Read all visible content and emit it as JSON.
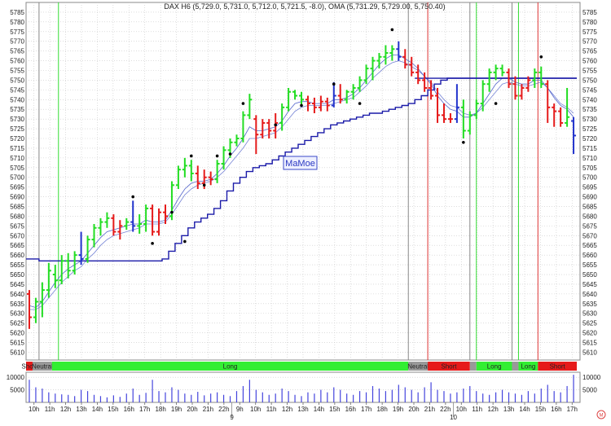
{
  "header": {
    "legend_text": "DAX H6 (5,729.0, 5,731.0, 5,712.0, 5,721.5, -8.0), OMA (5,731.29, 5,729.00, 5,750.40)"
  },
  "watermark": "MaMoe",
  "colors": {
    "up": "#22dd22",
    "down": "#e51a1a",
    "neutral": "#2233cc",
    "stop_line": "#1a1aa8",
    "ma": "#5566cc",
    "long_band": "#33ee33",
    "short_band": "#e61a1a",
    "neutral_band": "#999999",
    "volume": "#4444dd",
    "grid": "#c8c8c8",
    "session_line_green": "#33dd33",
    "session_line_red": "#dd3333",
    "session_line_gray": "#888888"
  },
  "chart_data": {
    "type": "ohlc",
    "instrument": "DAX H6",
    "ylim": [
      5606,
      5790
    ],
    "y_ticks": [
      5610,
      5615,
      5620,
      5625,
      5630,
      5635,
      5640,
      5645,
      5650,
      5655,
      5660,
      5665,
      5670,
      5675,
      5680,
      5685,
      5690,
      5695,
      5700,
      5705,
      5710,
      5715,
      5720,
      5725,
      5730,
      5735,
      5740,
      5745,
      5750,
      5755,
      5760,
      5765,
      5770,
      5775,
      5780,
      5785
    ],
    "x_ticks": [
      "10h",
      "11h",
      "12h",
      "13h",
      "14h",
      "15h",
      "16h",
      "17h",
      "18h",
      "19h",
      "20h",
      "21h",
      "22h",
      "9h",
      "10h",
      "11h",
      "12h",
      "13h",
      "14h",
      "15h",
      "16h",
      "17h",
      "18h",
      "19h",
      "20h",
      "21h",
      "22h",
      "10h",
      "11h",
      "12h",
      "13h",
      "14h",
      "15h",
      "16h",
      "17h"
    ],
    "date_labels": [
      "9",
      "10"
    ],
    "bars": [
      {
        "o": 5640,
        "h": 5642,
        "l": 5622,
        "c": 5628,
        "d": "down"
      },
      {
        "o": 5628,
        "h": 5638,
        "l": 5625,
        "c": 5636,
        "d": "up"
      },
      {
        "o": 5636,
        "h": 5646,
        "l": 5628,
        "c": 5642,
        "d": "up"
      },
      {
        "o": 5642,
        "h": 5656,
        "l": 5638,
        "c": 5652,
        "d": "up"
      },
      {
        "o": 5650,
        "h": 5655,
        "l": 5643,
        "c": 5647,
        "d": "up"
      },
      {
        "o": 5647,
        "h": 5660,
        "l": 5645,
        "c": 5657,
        "d": "up"
      },
      {
        "o": 5657,
        "h": 5661,
        "l": 5648,
        "c": 5652,
        "d": "up"
      },
      {
        "o": 5652,
        "h": 5662,
        "l": 5650,
        "c": 5660,
        "d": "up"
      },
      {
        "o": 5660,
        "h": 5672,
        "l": 5655,
        "c": 5658,
        "d": "neutral"
      },
      {
        "o": 5658,
        "h": 5670,
        "l": 5656,
        "c": 5668,
        "d": "up"
      },
      {
        "o": 5668,
        "h": 5676,
        "l": 5664,
        "c": 5674,
        "d": "up"
      },
      {
        "o": 5674,
        "h": 5679,
        "l": 5670,
        "c": 5677,
        "d": "up"
      },
      {
        "o": 5677,
        "h": 5682,
        "l": 5674,
        "c": 5679,
        "d": "up"
      },
      {
        "o": 5679,
        "h": 5681,
        "l": 5670,
        "c": 5672,
        "d": "down"
      },
      {
        "o": 5672,
        "h": 5678,
        "l": 5668,
        "c": 5675,
        "d": "down"
      },
      {
        "o": 5675,
        "h": 5679,
        "l": 5673,
        "c": 5677,
        "d": "up"
      },
      {
        "o": 5677,
        "h": 5688,
        "l": 5672,
        "c": 5675,
        "d": "neutral"
      },
      {
        "o": 5675,
        "h": 5681,
        "l": 5671,
        "c": 5676,
        "d": "up"
      },
      {
        "o": 5676,
        "h": 5686,
        "l": 5672,
        "c": 5684,
        "d": "up"
      },
      {
        "o": 5684,
        "h": 5686,
        "l": 5670,
        "c": 5672,
        "d": "down"
      },
      {
        "o": 5672,
        "h": 5684,
        "l": 5670,
        "c": 5682,
        "d": "down"
      },
      {
        "o": 5682,
        "h": 5686,
        "l": 5676,
        "c": 5680,
        "d": "down"
      },
      {
        "o": 5680,
        "h": 5698,
        "l": 5678,
        "c": 5696,
        "d": "up"
      },
      {
        "o": 5696,
        "h": 5706,
        "l": 5694,
        "c": 5704,
        "d": "up"
      },
      {
        "o": 5704,
        "h": 5710,
        "l": 5700,
        "c": 5706,
        "d": "up"
      },
      {
        "o": 5706,
        "h": 5709,
        "l": 5698,
        "c": 5702,
        "d": "up"
      },
      {
        "o": 5702,
        "h": 5706,
        "l": 5694,
        "c": 5697,
        "d": "down"
      },
      {
        "o": 5697,
        "h": 5704,
        "l": 5694,
        "c": 5700,
        "d": "down"
      },
      {
        "o": 5700,
        "h": 5703,
        "l": 5696,
        "c": 5699,
        "d": "down"
      },
      {
        "o": 5699,
        "h": 5709,
        "l": 5697,
        "c": 5707,
        "d": "up"
      },
      {
        "o": 5707,
        "h": 5716,
        "l": 5704,
        "c": 5714,
        "d": "up"
      },
      {
        "o": 5714,
        "h": 5720,
        "l": 5710,
        "c": 5718,
        "d": "up"
      },
      {
        "o": 5718,
        "h": 5722,
        "l": 5716,
        "c": 5720,
        "d": "up"
      },
      {
        "o": 5720,
        "h": 5734,
        "l": 5718,
        "c": 5732,
        "d": "up"
      },
      {
        "o": 5732,
        "h": 5743,
        "l": 5730,
        "c": 5740,
        "d": "up"
      },
      {
        "o": 5730,
        "h": 5732,
        "l": 5712,
        "c": 5722,
        "d": "down"
      },
      {
        "o": 5722,
        "h": 5730,
        "l": 5720,
        "c": 5728,
        "d": "down"
      },
      {
        "o": 5728,
        "h": 5730,
        "l": 5720,
        "c": 5724,
        "d": "down"
      },
      {
        "o": 5724,
        "h": 5733,
        "l": 5720,
        "c": 5728,
        "d": "down"
      },
      {
        "o": 5728,
        "h": 5738,
        "l": 5724,
        "c": 5736,
        "d": "up"
      },
      {
        "o": 5736,
        "h": 5746,
        "l": 5734,
        "c": 5744,
        "d": "up"
      },
      {
        "o": 5744,
        "h": 5745,
        "l": 5740,
        "c": 5742,
        "d": "up"
      },
      {
        "o": 5742,
        "h": 5744,
        "l": 5737,
        "c": 5740,
        "d": "up"
      },
      {
        "o": 5740,
        "h": 5742,
        "l": 5734,
        "c": 5738,
        "d": "down"
      },
      {
        "o": 5738,
        "h": 5741,
        "l": 5733,
        "c": 5736,
        "d": "down"
      },
      {
        "o": 5736,
        "h": 5742,
        "l": 5734,
        "c": 5739,
        "d": "down"
      },
      {
        "o": 5739,
        "h": 5741,
        "l": 5734,
        "c": 5737,
        "d": "down"
      },
      {
        "o": 5737,
        "h": 5749,
        "l": 5736,
        "c": 5742,
        "d": "neutral"
      },
      {
        "o": 5742,
        "h": 5748,
        "l": 5738,
        "c": 5740,
        "d": "down"
      },
      {
        "o": 5740,
        "h": 5745,
        "l": 5738,
        "c": 5744,
        "d": "up"
      },
      {
        "o": 5744,
        "h": 5748,
        "l": 5740,
        "c": 5746,
        "d": "up"
      },
      {
        "o": 5746,
        "h": 5752,
        "l": 5744,
        "c": 5750,
        "d": "up"
      },
      {
        "o": 5750,
        "h": 5758,
        "l": 5748,
        "c": 5756,
        "d": "up"
      },
      {
        "o": 5756,
        "h": 5762,
        "l": 5750,
        "c": 5760,
        "d": "up"
      },
      {
        "o": 5760,
        "h": 5764,
        "l": 5756,
        "c": 5762,
        "d": "up"
      },
      {
        "o": 5762,
        "h": 5768,
        "l": 5758,
        "c": 5764,
        "d": "up"
      },
      {
        "o": 5764,
        "h": 5768,
        "l": 5760,
        "c": 5766,
        "d": "up"
      },
      {
        "o": 5766,
        "h": 5770,
        "l": 5760,
        "c": 5762,
        "d": "neutral"
      },
      {
        "o": 5762,
        "h": 5766,
        "l": 5756,
        "c": 5758,
        "d": "down"
      },
      {
        "o": 5758,
        "h": 5762,
        "l": 5752,
        "c": 5754,
        "d": "down"
      },
      {
        "o": 5754,
        "h": 5758,
        "l": 5748,
        "c": 5750,
        "d": "down"
      },
      {
        "o": 5750,
        "h": 5754,
        "l": 5744,
        "c": 5746,
        "d": "down"
      },
      {
        "o": 5746,
        "h": 5750,
        "l": 5740,
        "c": 5742,
        "d": "down"
      },
      {
        "o": 5742,
        "h": 5746,
        "l": 5728,
        "c": 5732,
        "d": "down"
      },
      {
        "o": 5732,
        "h": 5738,
        "l": 5728,
        "c": 5730,
        "d": "down"
      },
      {
        "o": 5730,
        "h": 5733,
        "l": 5728,
        "c": 5730,
        "d": "down"
      },
      {
        "o": 5730,
        "h": 5748,
        "l": 5728,
        "c": 5736,
        "d": "neutral"
      },
      {
        "o": 5736,
        "h": 5740,
        "l": 5720,
        "c": 5724,
        "d": "up"
      },
      {
        "o": 5724,
        "h": 5734,
        "l": 5722,
        "c": 5732,
        "d": "up"
      },
      {
        "o": 5732,
        "h": 5740,
        "l": 5730,
        "c": 5738,
        "d": "up"
      },
      {
        "o": 5738,
        "h": 5750,
        "l": 5734,
        "c": 5748,
        "d": "up"
      },
      {
        "o": 5748,
        "h": 5756,
        "l": 5744,
        "c": 5754,
        "d": "up"
      },
      {
        "o": 5754,
        "h": 5758,
        "l": 5750,
        "c": 5756,
        "d": "up"
      },
      {
        "o": 5756,
        "h": 5758,
        "l": 5752,
        "c": 5754,
        "d": "up"
      },
      {
        "o": 5754,
        "h": 5756,
        "l": 5746,
        "c": 5748,
        "d": "down"
      },
      {
        "o": 5748,
        "h": 5752,
        "l": 5740,
        "c": 5742,
        "d": "down"
      },
      {
        "o": 5742,
        "h": 5748,
        "l": 5740,
        "c": 5746,
        "d": "down"
      },
      {
        "o": 5746,
        "h": 5752,
        "l": 5744,
        "c": 5750,
        "d": "down"
      },
      {
        "o": 5750,
        "h": 5756,
        "l": 5746,
        "c": 5754,
        "d": "up"
      },
      {
        "o": 5754,
        "h": 5757,
        "l": 5746,
        "c": 5748,
        "d": "up"
      },
      {
        "o": 5748,
        "h": 5750,
        "l": 5728,
        "c": 5736,
        "d": "down"
      },
      {
        "o": 5736,
        "h": 5738,
        "l": 5726,
        "c": 5734,
        "d": "down"
      },
      {
        "o": 5734,
        "h": 5736,
        "l": 5726,
        "c": 5728,
        "d": "down"
      },
      {
        "o": 5728,
        "h": 5746,
        "l": 5726,
        "c": 5731,
        "d": "up"
      },
      {
        "o": 5729,
        "h": 5731,
        "l": 5712,
        "c": 5721.5,
        "d": "neutral"
      }
    ],
    "stop_line": [
      5658,
      5658,
      5657,
      5657,
      5657,
      5657,
      5657,
      5657,
      5657,
      5657,
      5657,
      5657,
      5657,
      5657,
      5657,
      5657,
      5657,
      5657,
      5657,
      5657,
      5657,
      5658,
      5662,
      5666,
      5670,
      5674,
      5677,
      5679,
      5681,
      5684,
      5688,
      5693,
      5697,
      5700,
      5703,
      5705,
      5706,
      5707,
      5709,
      5711,
      5713,
      5715,
      5717,
      5719,
      5721,
      5723,
      5725,
      5727,
      5728,
      5729,
      5730,
      5731,
      5732,
      5733,
      5733,
      5734,
      5735,
      5736,
      5737,
      5738,
      5740,
      5742,
      5745,
      5748,
      5750,
      5751,
      5751,
      5751,
      5751,
      5751,
      5751,
      5751,
      5751,
      5751,
      5751,
      5751,
      5751,
      5751,
      5751,
      5751,
      5751,
      5751,
      5751,
      5751,
      5751
    ],
    "ma_fast": [
      5634,
      5633,
      5636,
      5641,
      5646,
      5650,
      5653,
      5655,
      5657,
      5661,
      5665,
      5669,
      5672,
      5673,
      5674,
      5675,
      5676,
      5676,
      5678,
      5677,
      5677,
      5678,
      5683,
      5689,
      5694,
      5697,
      5698,
      5698,
      5699,
      5702,
      5706,
      5711,
      5715,
      5720,
      5726,
      5724,
      5724,
      5725,
      5726,
      5729,
      5734,
      5738,
      5739,
      5739,
      5738,
      5738,
      5738,
      5740,
      5740,
      5741,
      5743,
      5746,
      5750,
      5754,
      5758,
      5761,
      5763,
      5763,
      5761,
      5759,
      5756,
      5752,
      5748,
      5742,
      5738,
      5735,
      5734,
      5731,
      5731,
      5733,
      5738,
      5743,
      5748,
      5751,
      5751,
      5749,
      5748,
      5748,
      5750,
      5750,
      5746,
      5741,
      5737,
      5735,
      5731
    ],
    "ma_slow": [
      5632,
      5632,
      5634,
      5638,
      5642,
      5646,
      5649,
      5652,
      5654,
      5658,
      5661,
      5665,
      5668,
      5670,
      5671,
      5672,
      5673,
      5674,
      5676,
      5676,
      5676,
      5677,
      5681,
      5686,
      5691,
      5694,
      5696,
      5697,
      5698,
      5700,
      5703,
      5707,
      5711,
      5715,
      5720,
      5720,
      5721,
      5722,
      5723,
      5726,
      5730,
      5734,
      5736,
      5737,
      5737,
      5737,
      5737,
      5738,
      5739,
      5740,
      5741,
      5744,
      5747,
      5751,
      5754,
      5757,
      5759,
      5760,
      5759,
      5757,
      5755,
      5752,
      5749,
      5744,
      5740,
      5737,
      5736,
      5733,
      5732,
      5733,
      5736,
      5740,
      5744,
      5748,
      5749,
      5748,
      5747,
      5747,
      5748,
      5749,
      5746,
      5742,
      5738,
      5736,
      5733
    ],
    "level_line": 5751,
    "dots_above": [
      [
        16,
        5690
      ],
      [
        22,
        5682
      ],
      [
        25,
        5711
      ],
      [
        29,
        5711
      ],
      [
        33,
        5738
      ],
      [
        47,
        5748
      ],
      [
        56,
        5776
      ],
      [
        79,
        5762
      ]
    ],
    "dots_below": [
      [
        19,
        5666
      ],
      [
        24,
        5667
      ],
      [
        27,
        5696
      ],
      [
        31,
        5712
      ],
      [
        38,
        5727
      ],
      [
        42,
        5737
      ],
      [
        51,
        5738
      ],
      [
        67,
        5718
      ],
      [
        72,
        5738
      ]
    ],
    "bands": [
      {
        "label": "Short",
        "from": 0,
        "to": 1,
        "state": "short"
      },
      {
        "label": "Neutral",
        "from": 1,
        "to": 4,
        "state": "neutral"
      },
      {
        "label": "Long",
        "from": 4,
        "to": 59,
        "state": "long"
      },
      {
        "label": "Neutral",
        "from": 59,
        "to": 62,
        "state": "neutral"
      },
      {
        "label": "Short",
        "from": 62,
        "to": 68.5,
        "state": "short"
      },
      {
        "label": "",
        "from": 68.5,
        "to": 69.5,
        "state": "neutral"
      },
      {
        "label": "Long",
        "from": 69.5,
        "to": 75,
        "state": "long"
      },
      {
        "label": "",
        "from": 75,
        "to": 76,
        "state": "neutral"
      },
      {
        "label": "Long",
        "from": 76,
        "to": 79,
        "state": "long"
      },
      {
        "label": "Short",
        "from": 79,
        "to": 85,
        "state": "short"
      }
    ],
    "session_lines": [
      {
        "at": 2,
        "color": "gray"
      },
      {
        "at": 5,
        "color": "green"
      },
      {
        "at": 59,
        "color": "gray"
      },
      {
        "at": 62,
        "color": "red"
      },
      {
        "at": 68.5,
        "color": "gray"
      },
      {
        "at": 69.5,
        "color": "green"
      },
      {
        "at": 75,
        "color": "gray"
      },
      {
        "at": 76,
        "color": "green"
      },
      {
        "at": 79,
        "color": "red"
      }
    ],
    "volume": {
      "ylim": [
        0,
        12000
      ],
      "ticks": [
        5000,
        10000
      ],
      "values": [
        9000,
        6000,
        5500,
        4000,
        3500,
        3200,
        3000,
        2500,
        5000,
        4500,
        3000,
        2500,
        2000,
        2800,
        2200,
        3500,
        5500,
        3000,
        3800,
        9000,
        4500,
        4000,
        6000,
        5000,
        3500,
        3000,
        4200,
        2800,
        3500,
        4000,
        3000,
        2500,
        4500,
        6500,
        9000,
        5000,
        4000,
        3000,
        3500,
        5500,
        4500,
        3000,
        2500,
        4000,
        3500,
        5000,
        4000,
        6000,
        5000,
        3500,
        3000,
        4500,
        4000,
        6500,
        5500,
        4500,
        5000,
        7000,
        6000,
        5000,
        4000,
        6000,
        8000,
        5000,
        4500,
        3500,
        4000,
        5500,
        6500,
        4500,
        3500,
        3000,
        4000,
        5000,
        4000,
        3500,
        3000,
        4500,
        3500,
        5500,
        7000,
        4500,
        4000,
        6500,
        11000
      ]
    }
  }
}
